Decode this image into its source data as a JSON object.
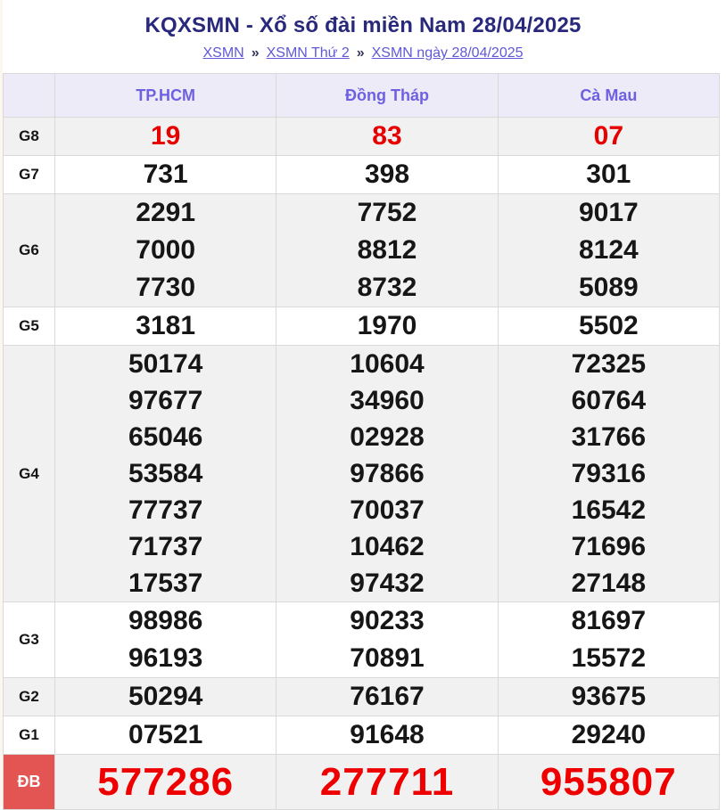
{
  "header": {
    "title": "KQXSMN - Xổ số đài miền Nam 28/04/2025"
  },
  "breadcrumb": {
    "separator": "»",
    "items": [
      "XSMN",
      "XSMN Thứ 2",
      "XSMN ngày 28/04/2025"
    ]
  },
  "colors": {
    "title_text": "#29297c",
    "link_text": "#6158d8",
    "column_header_text": "#6f60e2",
    "column_header_bg": "#ecebf7",
    "shaded_row_bg": "#f1f1f1",
    "number_text": "#161616",
    "red_number_text": "#e60000",
    "jackpot_number_text": "#ee0000",
    "jackpot_badge_bg": "#e25552",
    "border": "#d9d9d9"
  },
  "table": {
    "columns": [
      "TP.HCM",
      "Đồng Tháp",
      "Cà Mau"
    ],
    "rows": [
      {
        "id": "g8",
        "label": "G8",
        "style": "red",
        "shaded": true,
        "cells": [
          [
            "19"
          ],
          [
            "83"
          ],
          [
            "07"
          ]
        ]
      },
      {
        "id": "g7",
        "label": "G7",
        "style": "",
        "shaded": false,
        "cells": [
          [
            "731"
          ],
          [
            "398"
          ],
          [
            "301"
          ]
        ]
      },
      {
        "id": "g6",
        "label": "G6",
        "style": "",
        "shaded": true,
        "cells": [
          [
            "2291",
            "7000",
            "7730"
          ],
          [
            "7752",
            "8812",
            "8732"
          ],
          [
            "9017",
            "8124",
            "5089"
          ]
        ]
      },
      {
        "id": "g5",
        "label": "G5",
        "style": "",
        "shaded": false,
        "cells": [
          [
            "3181"
          ],
          [
            "1970"
          ],
          [
            "5502"
          ]
        ]
      },
      {
        "id": "g4",
        "label": "G4",
        "style": "",
        "shaded": true,
        "cells": [
          [
            "50174",
            "97677",
            "65046",
            "53584",
            "77737",
            "71737",
            "17537"
          ],
          [
            "10604",
            "34960",
            "02928",
            "97866",
            "70037",
            "10462",
            "97432"
          ],
          [
            "72325",
            "60764",
            "31766",
            "79316",
            "16542",
            "71696",
            "27148"
          ]
        ]
      },
      {
        "id": "g3",
        "label": "G3",
        "style": "",
        "shaded": false,
        "cells": [
          [
            "98986",
            "96193"
          ],
          [
            "90233",
            "70891"
          ],
          [
            "81697",
            "15572"
          ]
        ]
      },
      {
        "id": "g2",
        "label": "G2",
        "style": "",
        "shaded": true,
        "cells": [
          [
            "50294"
          ],
          [
            "76167"
          ],
          [
            "93675"
          ]
        ]
      },
      {
        "id": "g1",
        "label": "G1",
        "style": "",
        "shaded": false,
        "cells": [
          [
            "07521"
          ],
          [
            "91648"
          ],
          [
            "29240"
          ]
        ]
      },
      {
        "id": "db",
        "label": "ĐB",
        "style": "jackpot",
        "shaded": true,
        "cells": [
          [
            "577286"
          ],
          [
            "277711"
          ],
          [
            "955807"
          ]
        ]
      }
    ]
  }
}
